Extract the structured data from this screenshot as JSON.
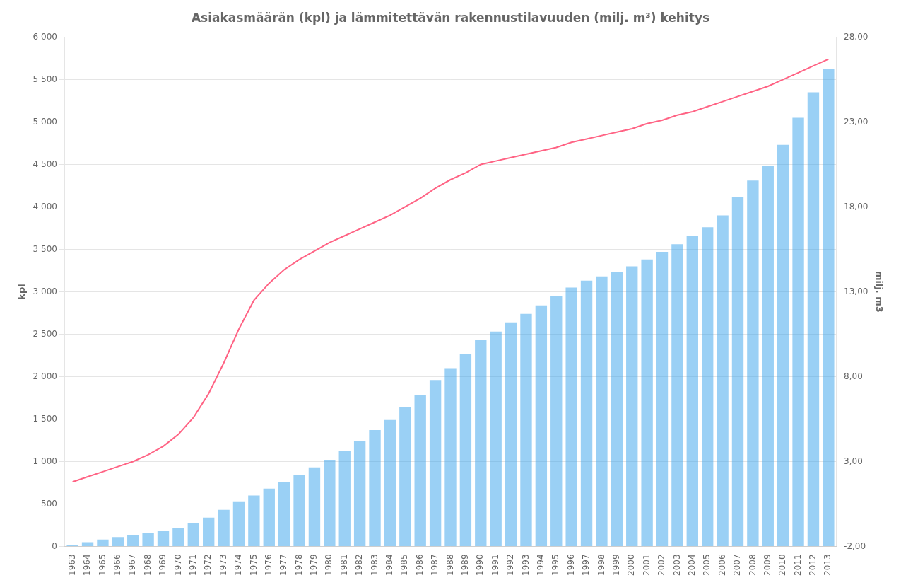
{
  "chart_data": {
    "type": "bar",
    "title": "Asiakasmäärän (kpl) ja lämmitettävän rakennustilavuuden (milj. m³) kehitys",
    "ylabel": "kpl",
    "y2label": "milj. m3",
    "categories": [
      "1963",
      "1964",
      "1965",
      "1966",
      "1967",
      "1968",
      "1969",
      "1970",
      "1971",
      "1972",
      "1973",
      "1974",
      "1975",
      "1976",
      "1977",
      "1978",
      "1979",
      "1980",
      "1981",
      "1982",
      "1983",
      "1984",
      "1985",
      "1986",
      "1987",
      "1988",
      "1989",
      "1990",
      "1991",
      "1992",
      "1993",
      "1994",
      "1995",
      "1996",
      "1997",
      "1998",
      "1999",
      "2000",
      "2001",
      "2002",
      "2003",
      "2004",
      "2005",
      "2006",
      "2007",
      "2008",
      "2009",
      "2010",
      "2011",
      "2012",
      "2013"
    ],
    "series": [
      {
        "type": "bar",
        "values": [
          18,
          50,
          80,
          110,
          130,
          155,
          185,
          220,
          270,
          340,
          430,
          530,
          600,
          680,
          760,
          840,
          930,
          1020,
          1120,
          1240,
          1370,
          1490,
          1640,
          1780,
          1960,
          2100,
          2270,
          2430,
          2530,
          2640,
          2740,
          2840,
          2950,
          3050,
          3130,
          3180,
          3230,
          3300,
          3380,
          3470,
          3560,
          3660,
          3760,
          3900,
          4120,
          4310,
          4480,
          4730,
          5050,
          5350,
          5620
        ]
      },
      {
        "type": "line",
        "axis": "y2",
        "values": [
          1.8,
          2.1,
          2.4,
          2.7,
          3.0,
          3.4,
          3.9,
          4.6,
          5.6,
          7.0,
          8.8,
          10.8,
          12.5,
          13.5,
          14.3,
          14.9,
          15.4,
          15.9,
          16.3,
          16.7,
          17.1,
          17.5,
          18.0,
          18.5,
          19.1,
          19.6,
          20.0,
          20.5,
          20.7,
          20.9,
          21.1,
          21.3,
          21.5,
          21.8,
          22.0,
          22.2,
          22.4,
          22.6,
          22.9,
          23.1,
          23.4,
          23.6,
          23.9,
          24.2,
          24.5,
          24.8,
          25.1,
          25.5,
          25.9,
          26.3,
          26.7
        ]
      }
    ],
    "ylim": [
      0,
      6000
    ],
    "yticks": [
      0,
      500,
      {
        "value": 1000,
        "label": "1 000"
      },
      {
        "value": 1500,
        "label": "1 500"
      },
      {
        "value": 2000,
        "label": "2 000"
      },
      {
        "value": 2500,
        "label": "2 500"
      },
      {
        "value": 3000,
        "label": "3 000"
      },
      {
        "value": 3500,
        "label": "3 500"
      },
      {
        "value": 4000,
        "label": "4 000"
      },
      {
        "value": 4500,
        "label": "4 500"
      },
      {
        "value": 5000,
        "label": "5 000"
      },
      {
        "value": 5500,
        "label": "5 500"
      },
      {
        "value": 6000,
        "label": "6 000"
      }
    ],
    "y2lim": [
      -2.0,
      28.0
    ],
    "y2ticks": [
      {
        "value": -2.0,
        "label": "-2,00"
      },
      {
        "value": 3.0,
        "label": "3,00"
      },
      {
        "value": 8.0,
        "label": "8,00"
      },
      {
        "value": 13.0,
        "label": "13,00"
      },
      {
        "value": 18.0,
        "label": "18,00"
      },
      {
        "value": 23.0,
        "label": "23,00"
      },
      {
        "value": 28.0,
        "label": "28,00"
      }
    ],
    "grid": true
  }
}
